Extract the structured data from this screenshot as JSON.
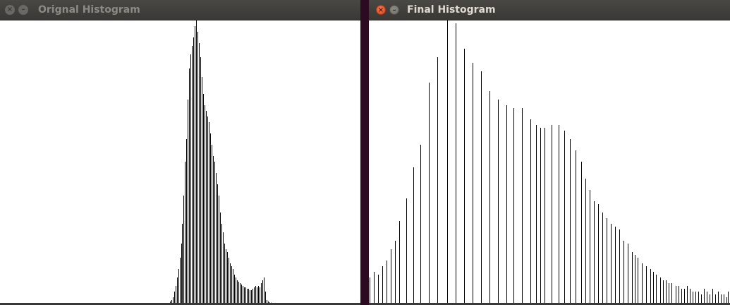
{
  "windows": {
    "left": {
      "title": "Orignal Histogram"
    },
    "right": {
      "title": "Final Histogram"
    }
  },
  "icons": {
    "close": "close-icon",
    "minimize": "minimize-icon"
  },
  "colors": {
    "desktop": "#2c0a21",
    "titlebar": "#3b3935",
    "close_active": "#e0541f",
    "histogram_bg": "#ffffff",
    "histogram_line": "#000000"
  },
  "chart_data": [
    {
      "type": "bar",
      "ylim": [
        0,
        100
      ],
      "x": [
        120,
        121,
        122,
        123,
        124,
        125,
        126,
        127,
        128,
        129,
        130,
        131,
        132,
        133,
        134,
        135,
        136,
        137,
        138,
        139,
        140,
        141,
        142,
        143,
        144,
        145,
        146,
        147,
        148,
        149,
        150,
        151,
        152,
        153,
        154,
        155,
        156,
        157,
        158,
        159,
        160,
        161,
        162,
        163,
        164,
        165,
        166,
        167,
        168,
        169,
        170,
        171,
        172,
        173,
        174,
        175,
        176,
        177,
        178,
        179,
        180,
        181,
        182,
        183,
        184,
        185,
        186,
        187,
        188,
        189,
        190,
        191,
        192,
        193,
        194,
        195,
        196,
        197,
        198,
        199,
        200,
        201
      ],
      "values": [
        0.5,
        1,
        2,
        4,
        6,
        9,
        12,
        16,
        21,
        28,
        38,
        50,
        58,
        72,
        83,
        88,
        91,
        94,
        98,
        100,
        96,
        92,
        87,
        80,
        74,
        70,
        68,
        66,
        64,
        60,
        56,
        52,
        50,
        46,
        42,
        38,
        32,
        28,
        25,
        21,
        19,
        18,
        16,
        14,
        13,
        12,
        10,
        9,
        8,
        7.5,
        7,
        6.5,
        6,
        5.5,
        5.5,
        5,
        5,
        4.5,
        4.5,
        5,
        5.5,
        6,
        5.5,
        6,
        5.5,
        7,
        8,
        9,
        4,
        1,
        0.5,
        0.2,
        0.1,
        0,
        0,
        0,
        0,
        0,
        0,
        0,
        0,
        0
      ]
    },
    {
      "type": "bar",
      "ylim": [
        0,
        100
      ],
      "x": [
        0,
        3,
        6,
        9,
        12,
        15,
        18,
        21,
        26,
        31,
        36,
        42,
        48,
        55,
        61,
        67,
        73,
        79,
        85,
        91,
        97,
        102,
        108,
        114,
        118,
        121,
        124,
        129,
        134,
        138,
        142,
        146,
        150,
        153,
        156,
        159,
        162,
        165,
        168,
        171,
        174,
        177,
        180,
        183,
        186,
        188,
        190,
        193,
        196,
        199,
        201,
        203,
        206,
        208,
        210,
        212,
        214,
        217,
        219,
        221,
        223,
        225,
        227,
        229,
        231,
        233,
        235,
        237,
        239,
        241,
        243,
        245,
        247,
        249,
        251,
        253,
        254
      ],
      "values": [
        9,
        11,
        10,
        13,
        15,
        19,
        22,
        29,
        37,
        48,
        56,
        78,
        87,
        100,
        99,
        90,
        85,
        82,
        75,
        72,
        70,
        69,
        69,
        65,
        63,
        62,
        62,
        63,
        63,
        61,
        58,
        54,
        50,
        44,
        40,
        36,
        35,
        32,
        30,
        28,
        27,
        26,
        22,
        21,
        18,
        17,
        16,
        14,
        13,
        12,
        11,
        10,
        9,
        8,
        8,
        7,
        7,
        6,
        6,
        5,
        5,
        6,
        5,
        4,
        4,
        4,
        3,
        5,
        4,
        3,
        5,
        3,
        4,
        3,
        3,
        2,
        4
      ]
    }
  ]
}
